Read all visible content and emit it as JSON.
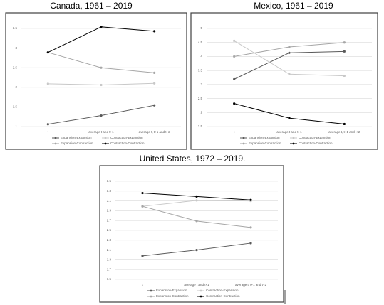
{
  "chart_data": [
    {
      "type": "line",
      "title": "Canada, 1961 – 2019",
      "categories": [
        "t",
        "average t and t+1",
        "average t, t+1 and t+2"
      ],
      "series": [
        {
          "name": "Expansion-Expansion",
          "color": "#595959",
          "values": [
            1.06,
            1.28,
            1.54
          ]
        },
        {
          "name": "Contraction-Expansion",
          "color": "#c8c8c8",
          "values": [
            2.09,
            2.06,
            2.1
          ]
        },
        {
          "name": "Expansion-Contraction",
          "color": "#a6a6a6",
          "values": [
            2.89,
            2.5,
            2.37
          ]
        },
        {
          "name": "Contraction-Contraction",
          "color": "#000000",
          "values": [
            2.89,
            3.54,
            3.43
          ]
        }
      ],
      "ylim": [
        1,
        3.5
      ],
      "yticks": [
        1,
        1.5,
        2,
        2.5,
        3,
        3.5
      ],
      "grid": true,
      "legend": "bottom"
    },
    {
      "type": "line",
      "title": "Mexico, 1961 – 2019",
      "categories": [
        "t",
        "average t and t+1",
        "average t, t+1 and t+2"
      ],
      "series": [
        {
          "name": "Expansion-Expansion",
          "color": "#595959",
          "values": [
            3.19,
            4.13,
            4.18
          ]
        },
        {
          "name": "Contraction-Expansion",
          "color": "#c8c8c8",
          "values": [
            4.56,
            3.37,
            3.31
          ]
        },
        {
          "name": "Expansion-Contraction",
          "color": "#a6a6a6",
          "values": [
            4.0,
            4.34,
            4.5
          ]
        },
        {
          "name": "Contraction-Contraction",
          "color": "#000000",
          "values": [
            2.32,
            1.8,
            1.59
          ]
        }
      ],
      "ylim": [
        1.5,
        5
      ],
      "yticks": [
        1.5,
        2,
        2.5,
        3,
        3.5,
        4,
        4.5,
        5
      ],
      "grid": true,
      "legend": "bottom"
    },
    {
      "type": "line",
      "title": "United States, 1972 – 2019.",
      "categories": [
        "t",
        "average t and t+1",
        "average t, t+1 and t+2"
      ],
      "series": [
        {
          "name": "Expansion-Expansion",
          "color": "#595959",
          "values": [
            1.98,
            2.1,
            2.24
          ]
        },
        {
          "name": "Contraction-Expansion",
          "color": "#c8c8c8",
          "values": [
            2.99,
            3.11,
            3.1
          ]
        },
        {
          "name": "Expansion-Contraction",
          "color": "#a6a6a6",
          "values": [
            2.99,
            2.69,
            2.56
          ]
        },
        {
          "name": "Contraction-Contraction",
          "color": "#000000",
          "values": [
            3.26,
            3.19,
            3.12
          ]
        }
      ],
      "ylim": [
        1.5,
        3.5
      ],
      "yticks": [
        1.5,
        1.7,
        1.9,
        2.1,
        2.3,
        2.5,
        2.7,
        2.9,
        3.1,
        3.3,
        3.5
      ],
      "grid": true,
      "legend": "bottom"
    }
  ]
}
